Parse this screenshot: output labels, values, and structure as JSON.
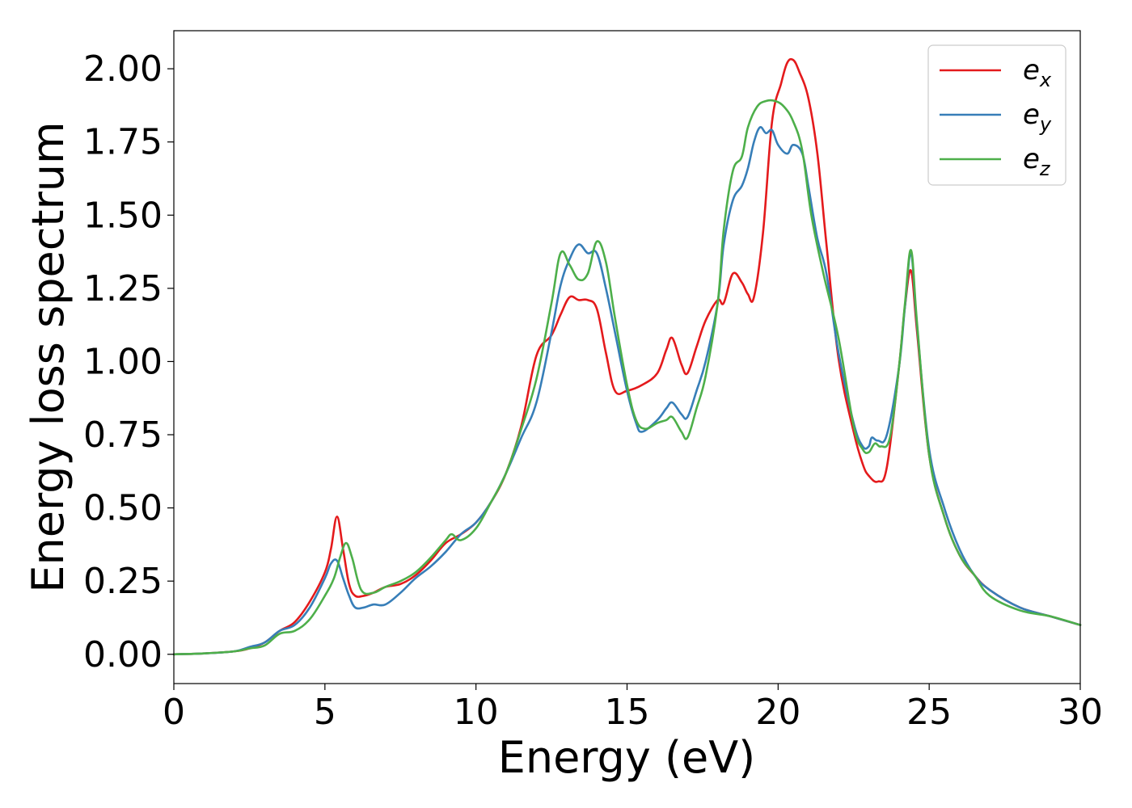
{
  "chart_data": {
    "type": "line",
    "title": "",
    "xlabel": "Energy (eV)",
    "ylabel": "Energy loss spectrum",
    "xlim": [
      0,
      30
    ],
    "ylim": [
      -0.1,
      2.13
    ],
    "xticks": [
      0,
      5,
      10,
      15,
      20,
      25,
      30
    ],
    "xtick_labels": [
      "0",
      "5",
      "10",
      "15",
      "20",
      "25",
      "30"
    ],
    "yticks": [
      0,
      0.25,
      0.5,
      0.75,
      1.0,
      1.25,
      1.5,
      1.75,
      2.0
    ],
    "ytick_labels": [
      "0.00",
      "0.25",
      "0.50",
      "0.75",
      "1.00",
      "1.25",
      "1.50",
      "1.75",
      "2.00"
    ],
    "grid": false,
    "legend_position": "top-right",
    "series": [
      {
        "name": "e_x",
        "legend_base": "e",
        "legend_sub": "x",
        "color": "#e41a1c",
        "x": [
          0,
          1,
          2,
          2.5,
          3,
          3.5,
          4,
          4.5,
          5,
          5.2,
          5.4,
          5.6,
          5.8,
          6,
          6.3,
          6.6,
          7,
          7.5,
          8,
          8.5,
          9,
          9.5,
          10,
          10.5,
          11,
          11.5,
          12,
          12.5,
          12.8,
          13.1,
          13.4,
          13.7,
          14,
          14.3,
          14.6,
          15,
          15.5,
          16,
          16.3,
          16.5,
          16.8,
          17,
          17.3,
          17.6,
          18,
          18.2,
          18.5,
          18.8,
          19,
          19.2,
          19.5,
          19.8,
          20.1,
          20.3,
          20.5,
          20.7,
          21,
          21.3,
          21.6,
          22,
          22.5,
          22.8,
          23,
          23.3,
          23.6,
          24,
          24.2,
          24.4,
          24.6,
          25,
          25.5,
          26,
          26.5,
          27,
          28,
          29,
          30
        ],
        "y": [
          0,
          0.003,
          0.01,
          0.02,
          0.04,
          0.08,
          0.11,
          0.18,
          0.28,
          0.36,
          0.47,
          0.36,
          0.24,
          0.2,
          0.2,
          0.21,
          0.23,
          0.24,
          0.27,
          0.32,
          0.38,
          0.41,
          0.45,
          0.52,
          0.62,
          0.78,
          1.02,
          1.09,
          1.16,
          1.22,
          1.21,
          1.21,
          1.18,
          1.03,
          0.9,
          0.9,
          0.92,
          0.96,
          1.04,
          1.08,
          0.99,
          0.96,
          1.05,
          1.14,
          1.21,
          1.2,
          1.3,
          1.27,
          1.23,
          1.22,
          1.44,
          1.82,
          1.95,
          2.02,
          2.03,
          1.99,
          1.9,
          1.71,
          1.4,
          1.01,
          0.76,
          0.65,
          0.61,
          0.59,
          0.64,
          0.98,
          1.19,
          1.31,
          1.1,
          0.68,
          0.47,
          0.34,
          0.27,
          0.22,
          0.16,
          0.13,
          0.1
        ]
      },
      {
        "name": "e_y",
        "legend_base": "e",
        "legend_sub": "y",
        "color": "#377eb8",
        "x": [
          0,
          1,
          2,
          2.5,
          3,
          3.5,
          4,
          4.5,
          5,
          5.2,
          5.4,
          5.6,
          5.8,
          6,
          6.3,
          6.6,
          7,
          7.5,
          8,
          8.5,
          9,
          9.5,
          10,
          10.5,
          11,
          11.5,
          12,
          12.5,
          12.8,
          13.1,
          13.4,
          13.7,
          14,
          14.3,
          14.6,
          15,
          15.3,
          15.5,
          16,
          16.3,
          16.5,
          16.8,
          17,
          17.3,
          17.6,
          18,
          18.2,
          18.5,
          18.8,
          19,
          19.2,
          19.4,
          19.6,
          19.8,
          20,
          20.3,
          20.5,
          20.8,
          21,
          21.3,
          21.6,
          22,
          22.5,
          22.8,
          23,
          23.1,
          23.3,
          23.6,
          24,
          24.2,
          24.4,
          24.6,
          25,
          25.5,
          26,
          26.5,
          27,
          28,
          29,
          30
        ],
        "y": [
          0,
          0.003,
          0.01,
          0.025,
          0.04,
          0.08,
          0.1,
          0.16,
          0.26,
          0.31,
          0.32,
          0.26,
          0.2,
          0.16,
          0.16,
          0.17,
          0.17,
          0.21,
          0.26,
          0.3,
          0.35,
          0.41,
          0.45,
          0.52,
          0.62,
          0.74,
          0.86,
          1.1,
          1.26,
          1.35,
          1.4,
          1.37,
          1.37,
          1.25,
          1.1,
          0.9,
          0.79,
          0.76,
          0.8,
          0.84,
          0.86,
          0.82,
          0.81,
          0.9,
          1.0,
          1.2,
          1.4,
          1.55,
          1.6,
          1.66,
          1.75,
          1.8,
          1.78,
          1.79,
          1.74,
          1.71,
          1.74,
          1.71,
          1.6,
          1.42,
          1.3,
          1.03,
          0.79,
          0.71,
          0.71,
          0.74,
          0.73,
          0.75,
          0.98,
          1.19,
          1.37,
          1.12,
          0.7,
          0.5,
          0.36,
          0.27,
          0.22,
          0.16,
          0.13,
          0.1
        ]
      },
      {
        "name": "e_z",
        "legend_base": "e",
        "legend_sub": "z",
        "color": "#4daf4a",
        "x": [
          0,
          1,
          2,
          2.5,
          3,
          3.5,
          4,
          4.5,
          5,
          5.3,
          5.5,
          5.7,
          5.9,
          6.2,
          6.6,
          7,
          7.5,
          8,
          8.5,
          9,
          9.2,
          9.5,
          10,
          10.5,
          11,
          11.5,
          12,
          12.5,
          12.8,
          13.1,
          13.4,
          13.7,
          14,
          14.3,
          14.6,
          15,
          15.3,
          15.6,
          16,
          16.3,
          16.5,
          16.8,
          17,
          17.3,
          17.6,
          18,
          18.2,
          18.5,
          18.8,
          19,
          19.3,
          19.6,
          19.9,
          20.2,
          20.5,
          20.8,
          21.1,
          21.5,
          22,
          22.5,
          22.8,
          23,
          23.2,
          23.4,
          23.7,
          24,
          24.2,
          24.4,
          24.6,
          25,
          25.5,
          26,
          26.5,
          27,
          28,
          29,
          30
        ],
        "y": [
          0,
          0.003,
          0.01,
          0.02,
          0.03,
          0.07,
          0.08,
          0.12,
          0.2,
          0.26,
          0.33,
          0.38,
          0.33,
          0.22,
          0.21,
          0.23,
          0.25,
          0.28,
          0.33,
          0.39,
          0.41,
          0.39,
          0.43,
          0.52,
          0.62,
          0.77,
          0.94,
          1.2,
          1.37,
          1.33,
          1.28,
          1.3,
          1.41,
          1.34,
          1.15,
          0.92,
          0.8,
          0.77,
          0.79,
          0.8,
          0.81,
          0.76,
          0.74,
          0.84,
          0.95,
          1.2,
          1.45,
          1.65,
          1.7,
          1.8,
          1.87,
          1.89,
          1.89,
          1.87,
          1.82,
          1.72,
          1.5,
          1.3,
          1.08,
          0.78,
          0.7,
          0.69,
          0.72,
          0.71,
          0.74,
          0.98,
          1.2,
          1.38,
          1.13,
          0.68,
          0.47,
          0.34,
          0.27,
          0.2,
          0.15,
          0.13,
          0.1
        ]
      }
    ]
  }
}
